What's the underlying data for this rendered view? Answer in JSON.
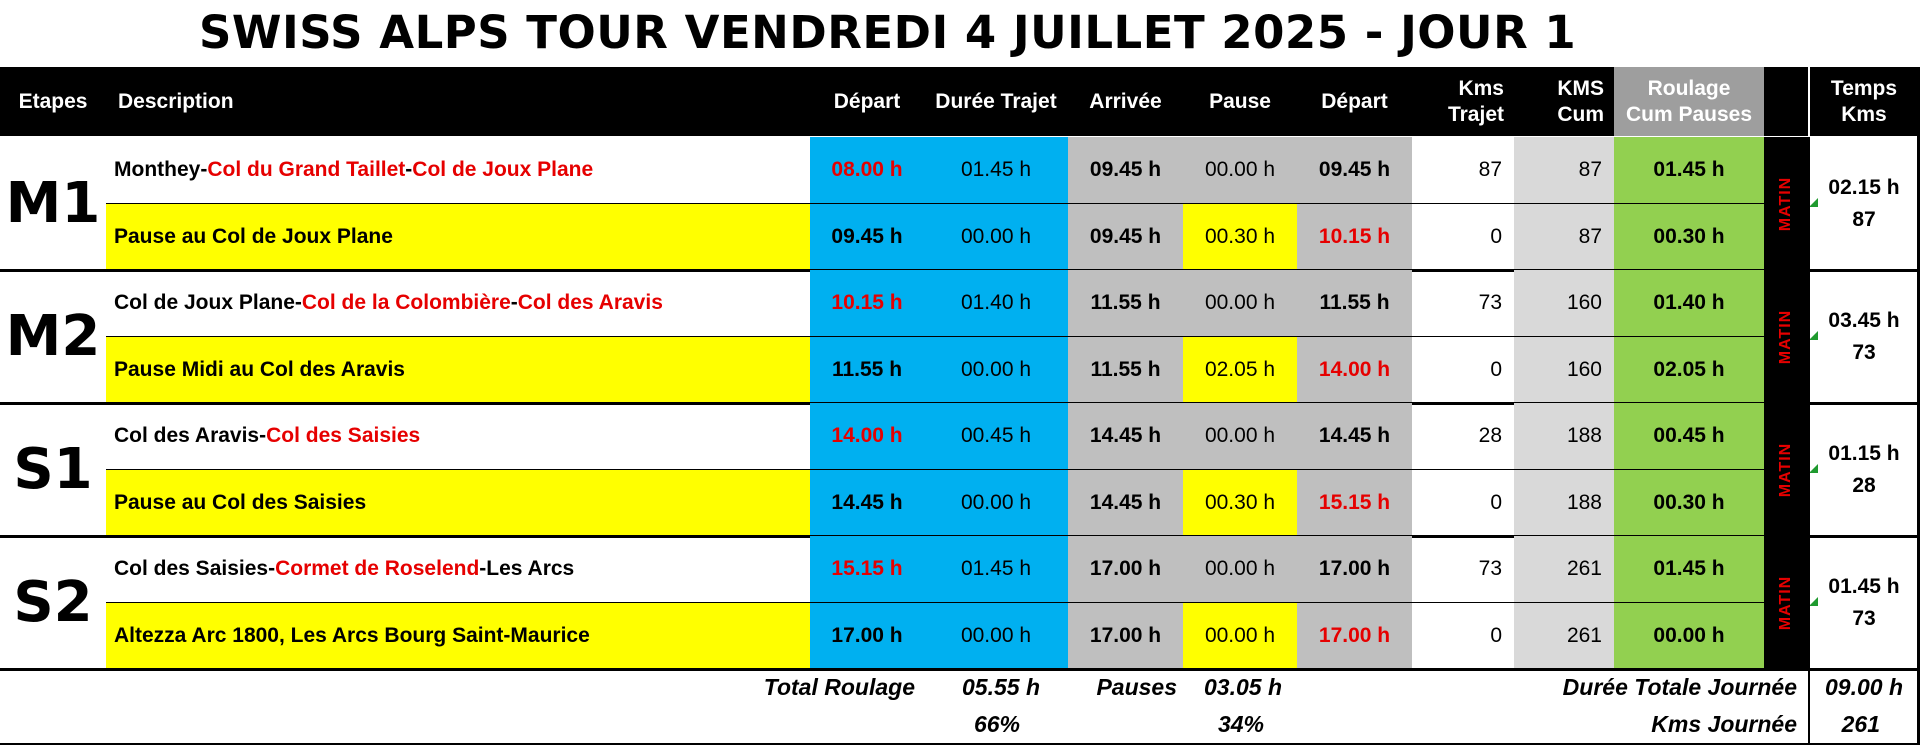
{
  "title": "SWISS ALPS TOUR VENDREDI 4 JUILLET 2025 - JOUR 1",
  "headers": {
    "etapes": "Etapes",
    "description": "Description",
    "depart1": "Départ",
    "duree": "Durée Trajet",
    "arrivee": "Arrivée",
    "pause": "Pause",
    "depart2": "Départ",
    "kms_trajet": "Kms\nTrajet",
    "kms_cum": "KMS\nCum",
    "roulage": "Roulage\nCum Pauses",
    "temps": "Temps\nKms"
  },
  "stages": [
    {
      "code": "M1",
      "period": "MATIN",
      "temps": "02.15 h",
      "kms": "87",
      "rows": [
        {
          "type": "route",
          "desc": [
            {
              "t": "Monthey",
              "red": false
            },
            {
              "t": " - ",
              "red": false
            },
            {
              "t": "Col du Grand Taillet",
              "red": true
            },
            {
              "t": " - ",
              "red": false
            },
            {
              "t": "Col de Joux Plane",
              "red": true
            }
          ],
          "depart": "08.00 h",
          "duree": "01.45 h",
          "arrivee": "09.45 h",
          "pause": "00.00 h",
          "depart2": "09.45 h",
          "kms_trajet": "87",
          "kms_cum": "87",
          "roulage": "01.45 h"
        },
        {
          "type": "pause",
          "desc": [
            {
              "t": "Pause au Col de Joux Plane",
              "red": false
            }
          ],
          "depart": "09.45 h",
          "duree": "00.00 h",
          "arrivee": "09.45 h",
          "pause": "00.30 h",
          "depart2": "10.15 h",
          "kms_trajet": "0",
          "kms_cum": "87",
          "roulage": "00.30 h"
        }
      ]
    },
    {
      "code": "M2",
      "period": "MATIN",
      "temps": "03.45 h",
      "kms": "73",
      "rows": [
        {
          "type": "route",
          "desc": [
            {
              "t": "Col de Joux Plane",
              "red": false
            },
            {
              "t": " - ",
              "red": false
            },
            {
              "t": "Col de la Colombière",
              "red": true
            },
            {
              "t": " - ",
              "red": false
            },
            {
              "t": "Col des Aravis",
              "red": true
            }
          ],
          "depart": "10.15 h",
          "duree": "01.40 h",
          "arrivee": "11.55 h",
          "pause": "00.00 h",
          "depart2": "11.55 h",
          "kms_trajet": "73",
          "kms_cum": "160",
          "roulage": "01.40 h"
        },
        {
          "type": "pause",
          "desc": [
            {
              "t": "Pause Midi au Col des Aravis",
              "red": false
            }
          ],
          "depart": "11.55 h",
          "duree": "00.00 h",
          "arrivee": "11.55 h",
          "pause": "02.05 h",
          "depart2": "14.00 h",
          "kms_trajet": "0",
          "kms_cum": "160",
          "roulage": "02.05 h"
        }
      ]
    },
    {
      "code": "S1",
      "period": "MATIN",
      "temps": "01.15 h",
      "kms": "28",
      "rows": [
        {
          "type": "route",
          "desc": [
            {
              "t": "Col des Aravis",
              "red": false
            },
            {
              "t": " - ",
              "red": false
            },
            {
              "t": "Col des Saisies",
              "red": true
            }
          ],
          "depart": "14.00 h",
          "duree": "00.45 h",
          "arrivee": "14.45 h",
          "pause": "00.00 h",
          "depart2": "14.45 h",
          "kms_trajet": "28",
          "kms_cum": "188",
          "roulage": "00.45 h"
        },
        {
          "type": "pause",
          "desc": [
            {
              "t": "Pause au Col des Saisies",
              "red": false
            }
          ],
          "depart": "14.45 h",
          "duree": "00.00 h",
          "arrivee": "14.45 h",
          "pause": "00.30 h",
          "depart2": "15.15 h",
          "kms_trajet": "0",
          "kms_cum": "188",
          "roulage": "00.30 h"
        }
      ]
    },
    {
      "code": "S2",
      "period": "MATIN",
      "temps": "01.45 h",
      "kms": "73",
      "rows": [
        {
          "type": "route",
          "desc": [
            {
              "t": "Col des Saisies",
              "red": false
            },
            {
              "t": " - ",
              "red": false
            },
            {
              "t": "Cormet de Roselend",
              "red": true
            },
            {
              "t": " - ",
              "red": false
            },
            {
              "t": "Les Arcs",
              "red": false
            }
          ],
          "depart": "15.15 h",
          "duree": "01.45 h",
          "arrivee": "17.00 h",
          "pause": "00.00 h",
          "depart2": "17.00 h",
          "kms_trajet": "73",
          "kms_cum": "261",
          "roulage": "01.45 h"
        },
        {
          "type": "pause",
          "desc": [
            {
              "t": "Altezza Arc 1800, Les Arcs Bourg Saint-Maurice",
              "red": false
            }
          ],
          "depart": "17.00 h",
          "duree": "00.00 h",
          "arrivee": "17.00 h",
          "pause": "00.00 h",
          "depart2": "17.00 h",
          "kms_trajet": "0",
          "kms_cum": "261",
          "roulage": "00.00 h"
        }
      ]
    }
  ],
  "summary": {
    "total_roulage_label": "Total Roulage",
    "total_roulage": "05.55 h",
    "roulage_pct": "66%",
    "pauses_label": "Pauses",
    "pauses": "03.05 h",
    "pauses_pct": "34%",
    "duree_totale_label": "Durée Totale Journée",
    "duree_totale": "09.00 h",
    "kms_journee_label": "Kms Journée",
    "kms_journee": "261"
  },
  "colors": {
    "blue": "#00b0f0",
    "gray": "#bfbfbf",
    "light_gray": "#d9d9d9",
    "yellow": "#ffff00",
    "green": "#92d050",
    "red": "#e60000",
    "header": "#000000"
  }
}
